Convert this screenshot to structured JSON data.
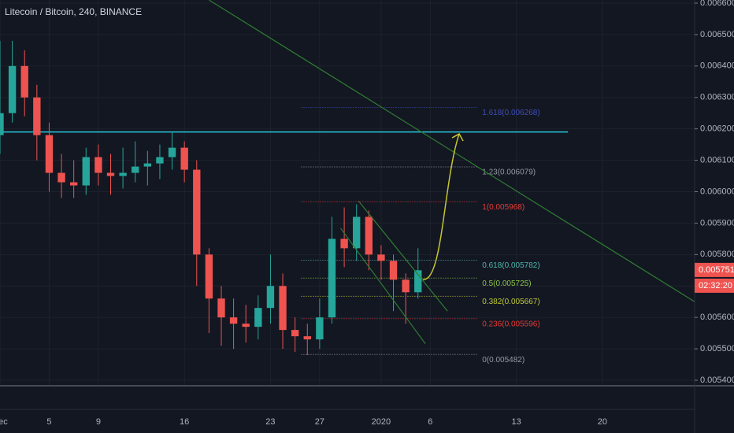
{
  "chart_data": {
    "type": "candlestick",
    "title": "Litecoin / Bitcoin, 240, BINANCE",
    "x": [
      0,
      1,
      2,
      3,
      4,
      5,
      6,
      7,
      8,
      9,
      10,
      11,
      12,
      13,
      14,
      15,
      16,
      17,
      18,
      19,
      20,
      21,
      22,
      23,
      24,
      25,
      26,
      27,
      28,
      29,
      30,
      31,
      32,
      33,
      34
    ],
    "open": [
      0.00618,
      0.00625,
      0.0064,
      0.0063,
      0.00618,
      0.00606,
      0.00603,
      0.00602,
      0.00611,
      0.00606,
      0.00605,
      0.00606,
      0.00608,
      0.00609,
      0.00611,
      0.00614,
      0.00607,
      0.0058,
      0.00566,
      0.0056,
      0.00558,
      0.00557,
      0.00563,
      0.0057,
      0.00556,
      0.00554,
      0.00553,
      0.0056,
      0.00585,
      0.00582,
      0.00592,
      0.0058,
      0.00578,
      0.00572,
      0.00568
    ],
    "high": [
      0.00648,
      0.00648,
      0.00645,
      0.00634,
      0.00622,
      0.00612,
      0.0061,
      0.00614,
      0.00615,
      0.00612,
      0.00614,
      0.00616,
      0.00613,
      0.00615,
      0.00619,
      0.00616,
      0.0061,
      0.00582,
      0.0057,
      0.00566,
      0.00564,
      0.00567,
      0.0058,
      0.00574,
      0.0056,
      0.00558,
      0.00566,
      0.00592,
      0.00595,
      0.00596,
      0.00594,
      0.00583,
      0.0058,
      0.00574,
      0.00582
    ],
    "low": [
      0.00612,
      0.00622,
      0.00624,
      0.0061,
      0.006,
      0.00598,
      0.00598,
      0.00599,
      0.00602,
      0.00599,
      0.00601,
      0.00603,
      0.00602,
      0.00604,
      0.00607,
      0.00603,
      0.0057,
      0.00555,
      0.00551,
      0.0055,
      0.00552,
      0.00553,
      0.00558,
      0.0055,
      0.00549,
      0.00548,
      0.0055,
      0.00558,
      0.00576,
      0.00578,
      0.00575,
      0.00572,
      0.00562,
      0.00558,
      0.00566
    ],
    "close": [
      0.00625,
      0.0064,
      0.0063,
      0.00618,
      0.00606,
      0.00603,
      0.00602,
      0.00611,
      0.00606,
      0.00605,
      0.00606,
      0.00608,
      0.00609,
      0.00611,
      0.00614,
      0.00607,
      0.0058,
      0.00566,
      0.0056,
      0.00558,
      0.00557,
      0.00563,
      0.0057,
      0.00556,
      0.00554,
      0.00553,
      0.0056,
      0.00585,
      0.00582,
      0.00592,
      0.0058,
      0.00578,
      0.00572,
      0.00568,
      0.00575
    ],
    "up_color": "#26a69a",
    "down_color": "#ef5350",
    "xlim": [
      0,
      56.5
    ],
    "xticks": [
      {
        "value": 0,
        "label": "Dec"
      },
      {
        "value": 4,
        "label": "5"
      },
      {
        "value": 8,
        "label": "9"
      },
      {
        "value": 15,
        "label": "16"
      },
      {
        "value": 22,
        "label": "23"
      },
      {
        "value": 26,
        "label": "27"
      },
      {
        "value": 31,
        "label": "2020"
      },
      {
        "value": 35,
        "label": "6"
      },
      {
        "value": 42,
        "label": "13"
      },
      {
        "value": 49,
        "label": "20"
      }
    ],
    "ylim": [
      0.0054,
      0.0066
    ],
    "yticks": [
      {
        "value": 0.0054,
        "label": "0.005400"
      },
      {
        "value": 0.0055,
        "label": "0.005500"
      },
      {
        "value": 0.0056,
        "label": "0.005600"
      },
      {
        "value": 0.0057,
        "label": "0.005700"
      },
      {
        "value": 0.0058,
        "label": "0.005800"
      },
      {
        "value": 0.0059,
        "label": "0.005900"
      },
      {
        "value": 0.006,
        "label": "0.006000"
      },
      {
        "value": 0.0061,
        "label": "0.006100"
      },
      {
        "value": 0.0062,
        "label": "0.006200"
      },
      {
        "value": 0.0063,
        "label": "0.006300"
      },
      {
        "value": 0.0064,
        "label": "0.006400"
      },
      {
        "value": 0.0065,
        "label": "0.006500"
      },
      {
        "value": 0.0066,
        "label": "0.006600"
      }
    ],
    "grid": true,
    "fib_range": [
      24.5,
      38.9
    ],
    "fib_levels": [
      {
        "label": "1.618(0.006268)",
        "value": 0.006268,
        "color": "#3f4db8"
      },
      {
        "label": "1.23(0.006079)",
        "value": 0.006079,
        "color": "#9598a1"
      },
      {
        "label": "1(0.005968)",
        "value": 0.005968,
        "color": "#e53935"
      },
      {
        "label": "0.618(0.005782)",
        "value": 0.005782,
        "color": "#4db6ac"
      },
      {
        "label": "0.5(0.005725)",
        "value": 0.005725,
        "color": "#8bc34a"
      },
      {
        "label": "0.382(0.005667)",
        "value": 0.005667,
        "color": "#c0ca33"
      },
      {
        "label": "0.236(0.005596)",
        "value": 0.005596,
        "color": "#e53935"
      },
      {
        "label": "0(0.005482)",
        "value": 0.005482,
        "color": "#9598a1"
      }
    ],
    "horizontal_line": {
      "value": 0.00619,
      "x": [
        0,
        46.2
      ],
      "color": "#26c6da"
    },
    "trend_lines": [
      {
        "x": [
          17,
          56.5
        ],
        "y": [
          0.00661,
          0.00565
        ],
        "color": "#2e7d32"
      },
      {
        "x": [
          29.15,
          36.4
        ],
        "y": [
          0.005971,
          0.00562
        ],
        "color": "#2e7d32"
      },
      {
        "x": [
          27.7,
          34.6
        ],
        "y": [
          0.005884,
          0.005516
        ],
        "color": "#2e7d32"
      }
    ],
    "arrow": {
      "x": [
        34.4,
        37.35
      ],
      "y": [
        0.005721,
        0.006184
      ],
      "color": "#c6c630"
    },
    "last_price": {
      "value": 0.005751,
      "label": "0.005751"
    },
    "countdown": "02:32:20"
  }
}
